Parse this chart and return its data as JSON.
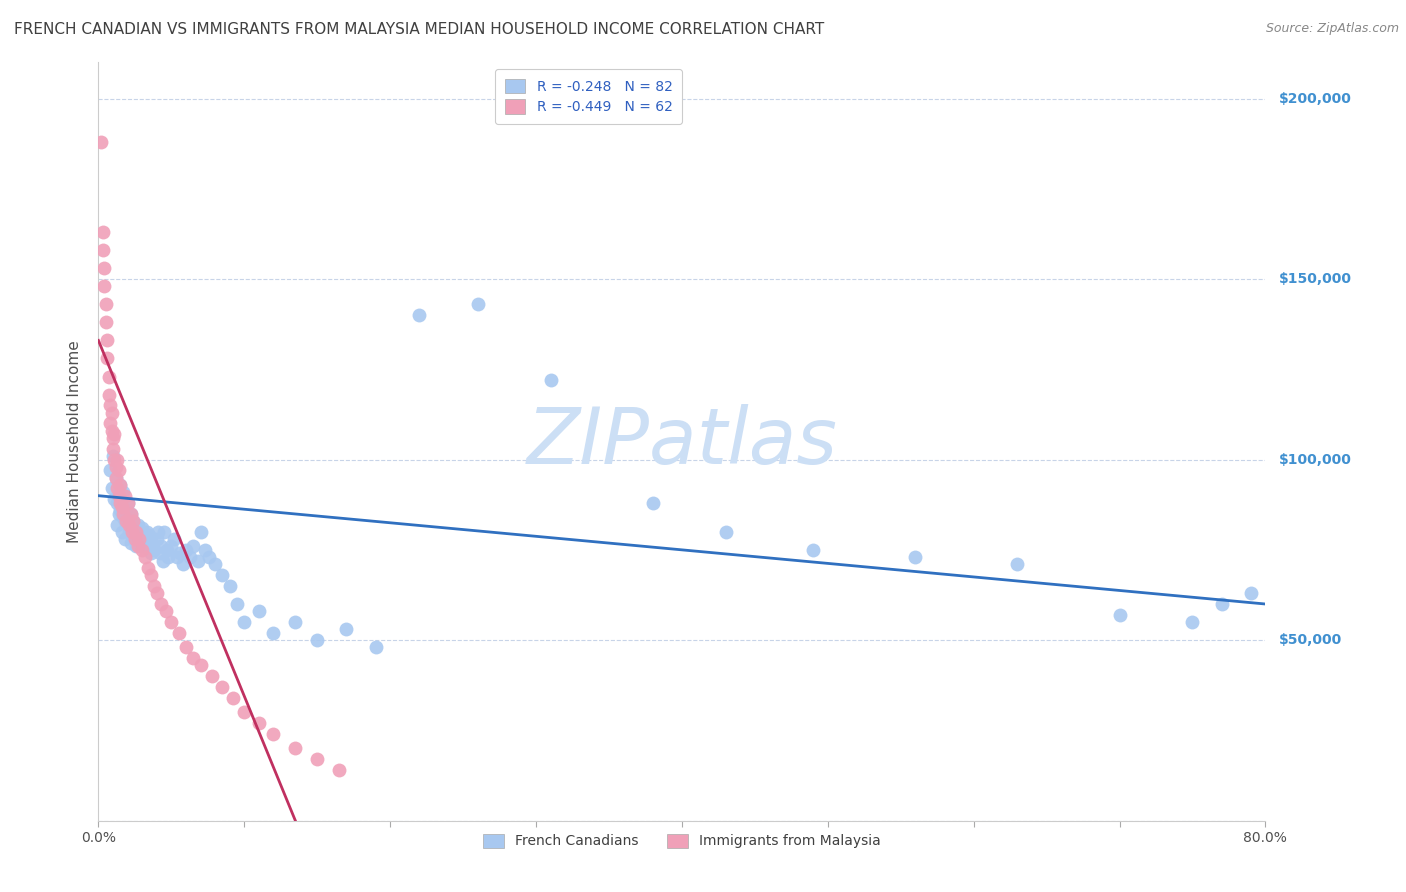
{
  "title": "FRENCH CANADIAN VS IMMIGRANTS FROM MALAYSIA MEDIAN HOUSEHOLD INCOME CORRELATION CHART",
  "source": "Source: ZipAtlas.com",
  "ylabel": "Median Household Income",
  "xlim": [
    0.0,
    0.8
  ],
  "ylim": [
    0,
    210000
  ],
  "yticks": [
    0,
    50000,
    100000,
    150000,
    200000
  ],
  "ytick_labels": [
    "",
    "$50,000",
    "$100,000",
    "$150,000",
    "$200,000"
  ],
  "legend_entries": [
    {
      "label": "R = -0.248   N = 82",
      "color": "#a8c8f0"
    },
    {
      "label": "R = -0.449   N = 62",
      "color": "#f0a0b8"
    }
  ],
  "legend_label_french": "French Canadians",
  "legend_label_malaysia": "Immigrants from Malaysia",
  "blue_scatter_color": "#a8c8f0",
  "pink_scatter_color": "#f0a0b8",
  "blue_line_color": "#3070c0",
  "pink_line_color": "#c03060",
  "watermark": "ZIPatlas",
  "watermark_color": "#ccdff5",
  "background_color": "#ffffff",
  "grid_color": "#c8d4e8",
  "title_color": "#404040",
  "axis_label_color": "#505050",
  "ytick_color": "#4090d0",
  "xtick_color": "#505050",
  "blue_points_x": [
    0.008,
    0.009,
    0.01,
    0.011,
    0.012,
    0.013,
    0.013,
    0.014,
    0.014,
    0.015,
    0.015,
    0.016,
    0.016,
    0.017,
    0.017,
    0.018,
    0.018,
    0.019,
    0.02,
    0.02,
    0.021,
    0.022,
    0.022,
    0.023,
    0.024,
    0.025,
    0.026,
    0.027,
    0.028,
    0.029,
    0.03,
    0.031,
    0.032,
    0.033,
    0.034,
    0.035,
    0.036,
    0.037,
    0.038,
    0.04,
    0.041,
    0.042,
    0.043,
    0.044,
    0.045,
    0.047,
    0.048,
    0.05,
    0.052,
    0.054,
    0.056,
    0.058,
    0.06,
    0.063,
    0.065,
    0.068,
    0.07,
    0.073,
    0.076,
    0.08,
    0.085,
    0.09,
    0.095,
    0.1,
    0.11,
    0.12,
    0.135,
    0.15,
    0.17,
    0.19,
    0.22,
    0.26,
    0.31,
    0.38,
    0.43,
    0.49,
    0.56,
    0.63,
    0.7,
    0.75,
    0.77,
    0.79
  ],
  "blue_points_y": [
    97000,
    92000,
    101000,
    89000,
    95000,
    88000,
    82000,
    90000,
    85000,
    93000,
    86000,
    88000,
    80000,
    84000,
    91000,
    83000,
    78000,
    86000,
    82000,
    88000,
    80000,
    85000,
    77000,
    79000,
    83000,
    80000,
    76000,
    82000,
    79000,
    77000,
    81000,
    76000,
    78000,
    80000,
    76000,
    79000,
    74000,
    77000,
    75000,
    78000,
    80000,
    74000,
    76000,
    72000,
    80000,
    75000,
    73000,
    76000,
    78000,
    73000,
    74000,
    71000,
    75000,
    73000,
    76000,
    72000,
    80000,
    75000,
    73000,
    71000,
    68000,
    65000,
    60000,
    55000,
    58000,
    52000,
    55000,
    50000,
    53000,
    48000,
    140000,
    143000,
    122000,
    88000,
    80000,
    75000,
    73000,
    71000,
    57000,
    55000,
    60000,
    63000
  ],
  "pink_points_x": [
    0.002,
    0.003,
    0.003,
    0.004,
    0.004,
    0.005,
    0.005,
    0.006,
    0.006,
    0.007,
    0.007,
    0.008,
    0.008,
    0.009,
    0.009,
    0.01,
    0.01,
    0.011,
    0.011,
    0.012,
    0.012,
    0.013,
    0.013,
    0.014,
    0.014,
    0.015,
    0.015,
    0.016,
    0.017,
    0.018,
    0.019,
    0.02,
    0.021,
    0.022,
    0.023,
    0.024,
    0.025,
    0.026,
    0.027,
    0.028,
    0.03,
    0.032,
    0.034,
    0.036,
    0.038,
    0.04,
    0.043,
    0.046,
    0.05,
    0.055,
    0.06,
    0.065,
    0.07,
    0.078,
    0.085,
    0.092,
    0.1,
    0.11,
    0.12,
    0.135,
    0.15,
    0.165
  ],
  "pink_points_y": [
    188000,
    163000,
    158000,
    153000,
    148000,
    143000,
    138000,
    133000,
    128000,
    123000,
    118000,
    115000,
    110000,
    113000,
    108000,
    106000,
    103000,
    100000,
    107000,
    98000,
    95000,
    100000,
    92000,
    97000,
    90000,
    88000,
    93000,
    87000,
    85000,
    90000,
    83000,
    88000,
    82000,
    85000,
    80000,
    83000,
    78000,
    80000,
    76000,
    78000,
    75000,
    73000,
    70000,
    68000,
    65000,
    63000,
    60000,
    58000,
    55000,
    52000,
    48000,
    45000,
    43000,
    40000,
    37000,
    34000,
    30000,
    27000,
    24000,
    20000,
    17000,
    14000
  ],
  "blue_line_x": [
    0.0,
    0.8
  ],
  "blue_line_y": [
    90000,
    60000
  ],
  "pink_line_x": [
    0.0,
    0.135
  ],
  "pink_line_y": [
    133000,
    0
  ],
  "title_fontsize": 11,
  "source_fontsize": 9,
  "ylabel_fontsize": 11,
  "tick_fontsize": 10,
  "legend_fontsize": 10,
  "marker_size": 100
}
